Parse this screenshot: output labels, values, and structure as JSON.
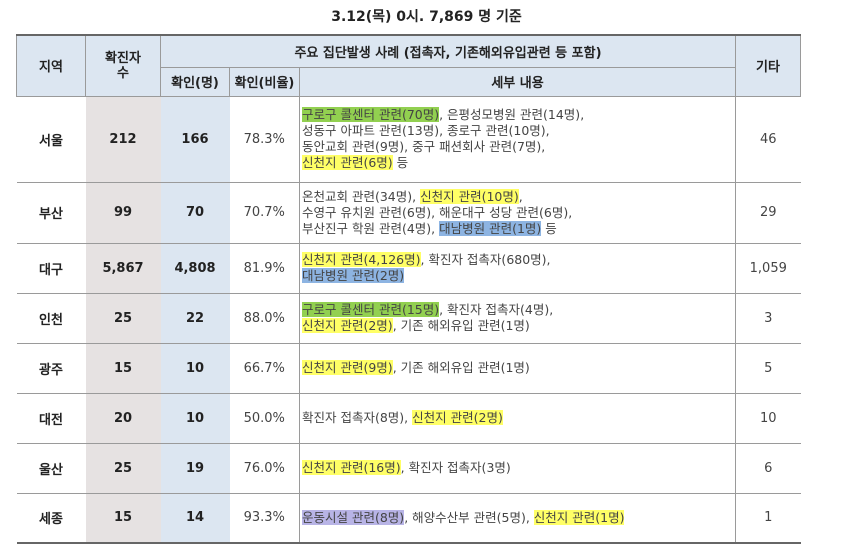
{
  "title": "3.12(목) 0시. 7,869 명 기준",
  "header": {
    "region": "지역",
    "confirmed_total": "확진자 수",
    "cluster_group": "주요 집단발생 사례 (접촉자, 기존해외유입관련 등 포함)",
    "confirmed_count": "확인(명)",
    "confirmed_ratio": "확인(비율)",
    "detail": "세부 내용",
    "other": "기타"
  },
  "rows": [
    {
      "region": "서울",
      "total": "212",
      "confirmed": "166",
      "ratio": "78.3%",
      "other": "46",
      "lines": [
        [
          {
            "t": "구로구 콜센터 관련(70명)",
            "hl": "green"
          },
          {
            "t": ", 은평성모병원 관련(14명),"
          }
        ],
        [
          {
            "t": "성동구 아파트 관련(13명), 종로구 관련(10명),"
          }
        ],
        [
          {
            "t": "동안교회 관련(9명), 중구 패션회사 관련(7명),"
          }
        ],
        [
          {
            "t": "신천지 관련(6명)",
            "hl": "yellow"
          },
          {
            "t": " 등"
          }
        ]
      ]
    },
    {
      "region": "부산",
      "total": "99",
      "confirmed": "70",
      "ratio": "70.7%",
      "other": "29",
      "lines": [
        [
          {
            "t": "온천교회 관련(34명), "
          },
          {
            "t": "신천지 관련(10명)",
            "hl": "yellow"
          },
          {
            "t": ","
          }
        ],
        [
          {
            "t": "수영구 유치원 관련(6명), 해운대구 성당 관련(6명),"
          }
        ],
        [
          {
            "t": "부산진구 학원 관련(4명), "
          },
          {
            "t": "대남병원 관련(1명)",
            "hl": "blue"
          },
          {
            "t": " 등"
          }
        ]
      ]
    },
    {
      "region": "대구",
      "total": "5,867",
      "confirmed": "4,808",
      "ratio": "81.9%",
      "other": "1,059",
      "lines": [
        [
          {
            "t": "신천지 관련(4,126명)",
            "hl": "yellow"
          },
          {
            "t": ", 확진자 접촉자(680명),"
          }
        ],
        [
          {
            "t": "대남병원 관련(2명)",
            "hl": "blue"
          }
        ]
      ]
    },
    {
      "region": "인천",
      "total": "25",
      "confirmed": "22",
      "ratio": "88.0%",
      "other": "3",
      "lines": [
        [
          {
            "t": "구로구 콜센터 관련(15명)",
            "hl": "green"
          },
          {
            "t": ", 확진자 접촉자(4명),"
          }
        ],
        [
          {
            "t": "신천지 관련(2명)",
            "hl": "yellow"
          },
          {
            "t": ", 기존 해외유입 관련(1명)"
          }
        ]
      ]
    },
    {
      "region": "광주",
      "total": "15",
      "confirmed": "10",
      "ratio": "66.7%",
      "other": "5",
      "lines": [
        [
          {
            "t": "신천지 관련(9명)",
            "hl": "yellow"
          },
          {
            "t": ", 기존 해외유입 관련(1명)"
          }
        ]
      ]
    },
    {
      "region": "대전",
      "total": "20",
      "confirmed": "10",
      "ratio": "50.0%",
      "other": "10",
      "lines": [
        [
          {
            "t": "확진자 접촉자(8명), "
          },
          {
            "t": "신천지 관련(2명)",
            "hl": "yellow"
          }
        ]
      ]
    },
    {
      "region": "울산",
      "total": "25",
      "confirmed": "19",
      "ratio": "76.0%",
      "other": "6",
      "lines": [
        [
          {
            "t": "신천지 관련(16명)",
            "hl": "yellow"
          },
          {
            "t": ", 확진자 접촉자(3명)"
          }
        ]
      ]
    },
    {
      "region": "세종",
      "total": "15",
      "confirmed": "14",
      "ratio": "93.3%",
      "other": "1",
      "lines": [
        [
          {
            "t": "운동시설 관련(8명)",
            "hl": "lav"
          },
          {
            "t": ", 해양수산부 관련(5명), "
          },
          {
            "t": "신천지 관련(1명)",
            "hl": "yellow"
          }
        ]
      ]
    }
  ]
}
